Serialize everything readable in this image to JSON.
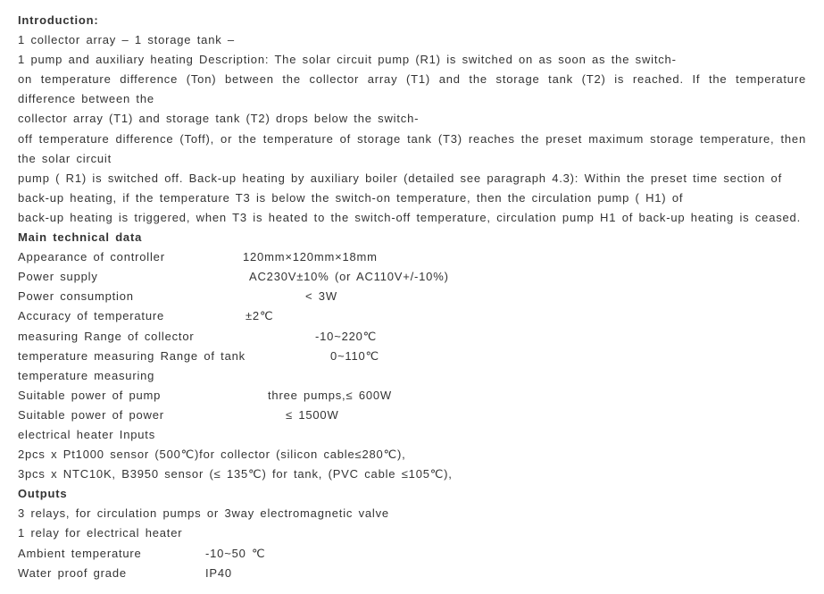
{
  "intro": {
    "heading": "Introduction:",
    "line1": "1 collector array – 1 storage tank –",
    "line2": " 1 pump and auxiliary heating Description: The solar circuit pump (R1) is switched on as soon as the switch-",
    "line3": "on temperature difference (Ton) between the collector array (T1) and the storage tank (T2) is reached. If the temperature difference between the",
    "line4": "collector array (T1) and storage tank (T2) drops below the switch-",
    "line5": "off temperature difference (Toff), or the temperature of storage tank (T3) reaches the preset maximum storage temperature, then the solar circuit",
    "line6": "pump ( R1) is switched off. Back-up heating by auxiliary boiler (detailed see paragraph 4.3): Within the preset time section of",
    "line7": "back-up heating, if the temperature T3 is below the switch-on temperature, then the circulation pump ( H1) of",
    "line8": "back-up heating is triggered, when T3 is heated to the switch-off temperature, circulation pump H1 of back-up heating is ceased."
  },
  "tech": {
    "heading": "Main technical data",
    "r1": {
      "label": "Appearance of controller",
      "value": "120mm×120mm×18mm",
      "lw": "252px"
    },
    "r2": {
      "label": "Power supply",
      "value": "AC230V±10% (or AC110V+/-10%)",
      "lw": "259px"
    },
    "r3": {
      "label": "Power consumption",
      "value": "< 3W",
      "lw": "322px"
    },
    "r4": {
      "label": "Accuracy of temperature",
      "value": "±2℃",
      "lw": "255px"
    },
    "r5": {
      "label": "measuring Range of collector",
      "value": "-10~220℃",
      "lw": "333px"
    },
    "r6": {
      "label": "temperature measuring Range of tank",
      "value": "0~110℃",
      "lw": "350px"
    },
    "r7": {
      "label": "temperature measuring",
      "value": "",
      "lw": "auto"
    },
    "r8": {
      "label": "Suitable power of pump",
      "value": "three pumps,≤ 600W",
      "lw": "280px"
    },
    "r9": {
      "label": "Suitable power of power",
      "value": "≤ 1500W",
      "lw": "300px"
    },
    "r10": {
      "label": "electrical heater Inputs",
      "value": "",
      "lw": "auto"
    },
    "r11": {
      "label": " 2pcs x Pt1000 sensor (500℃)for collector (silicon cable≤280℃),",
      "value": "",
      "lw": "auto"
    },
    "r12": {
      "label": " 3pcs x NTC10K, B3950 sensor (≤ 135℃) for tank, (PVC cable ≤105℃),",
      "value": "",
      "lw": "auto"
    }
  },
  "outputs": {
    "heading": "Outputs",
    "o1": "3 relays, for circulation pumps  or 3way electromagnetic valve",
    "o2": "1 relay for electrical heater",
    "r1": {
      "label": "Ambient temperature",
      "value": "-10~50 ℃",
      "lw": "210px"
    },
    "r2": {
      "label": "Water proof grade",
      "value": "IP40",
      "lw": "210px"
    }
  }
}
